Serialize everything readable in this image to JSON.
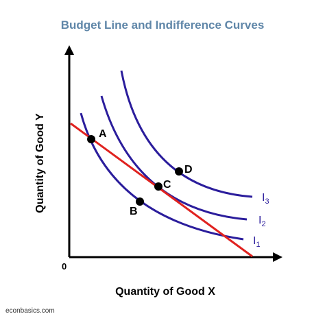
{
  "title": "Budget Line and Indifference Curves",
  "x_axis_label": "Quantity of Good X",
  "y_axis_label": "Quantity of Good Y",
  "origin_label": "0",
  "points": [
    "A",
    "B",
    "C",
    "D"
  ],
  "curves": [
    {
      "label": "I",
      "sub": "1"
    },
    {
      "label": "I",
      "sub": "2"
    },
    {
      "label": "I",
      "sub": "3"
    }
  ],
  "source": "econbasics.com"
}
